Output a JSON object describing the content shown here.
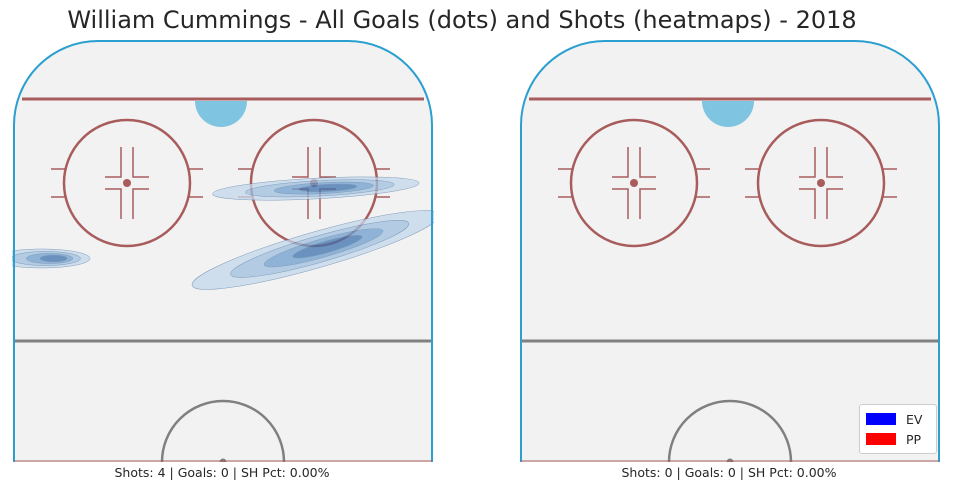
{
  "title": "William Cummings - All Goals (dots) and Shots (heatmaps) - 2018",
  "chart_data": [
    {
      "type": "heatmap",
      "panel": "left",
      "caption": "Shots: 4 | Goals: 0 | SH Pct: 0.00%",
      "shots": 4,
      "goals": 0,
      "sh_pct": "0.00%",
      "heatmap_color": "#4f8ec9",
      "goal_dots": [],
      "shot_clusters": [
        {
          "cx": 0.72,
          "cy": 0.355,
          "rx": 0.245,
          "ry": 0.022,
          "rot": -3
        },
        {
          "cx": 0.72,
          "cy": 0.5,
          "rx": 0.305,
          "ry": 0.04,
          "rot": -16
        },
        {
          "cx": 0.07,
          "cy": 0.52,
          "rx": 0.115,
          "ry": 0.02,
          "rot": 0
        }
      ]
    },
    {
      "type": "heatmap",
      "panel": "right",
      "caption": "Shots: 0 | Goals: 0 | SH Pct: 0.00%",
      "shots": 0,
      "goals": 0,
      "sh_pct": "0.00%",
      "goal_dots": [],
      "shot_clusters": []
    }
  ],
  "legend": [
    {
      "label": "EV",
      "color": "#0000ff"
    },
    {
      "label": "PP",
      "color": "#ff0000"
    }
  ],
  "colors": {
    "ice": "#f2f2f2",
    "boards": "#2a9fd0",
    "red_line": "#a85c5c",
    "crease": "#7fc4e0",
    "center_line": "#808080"
  }
}
